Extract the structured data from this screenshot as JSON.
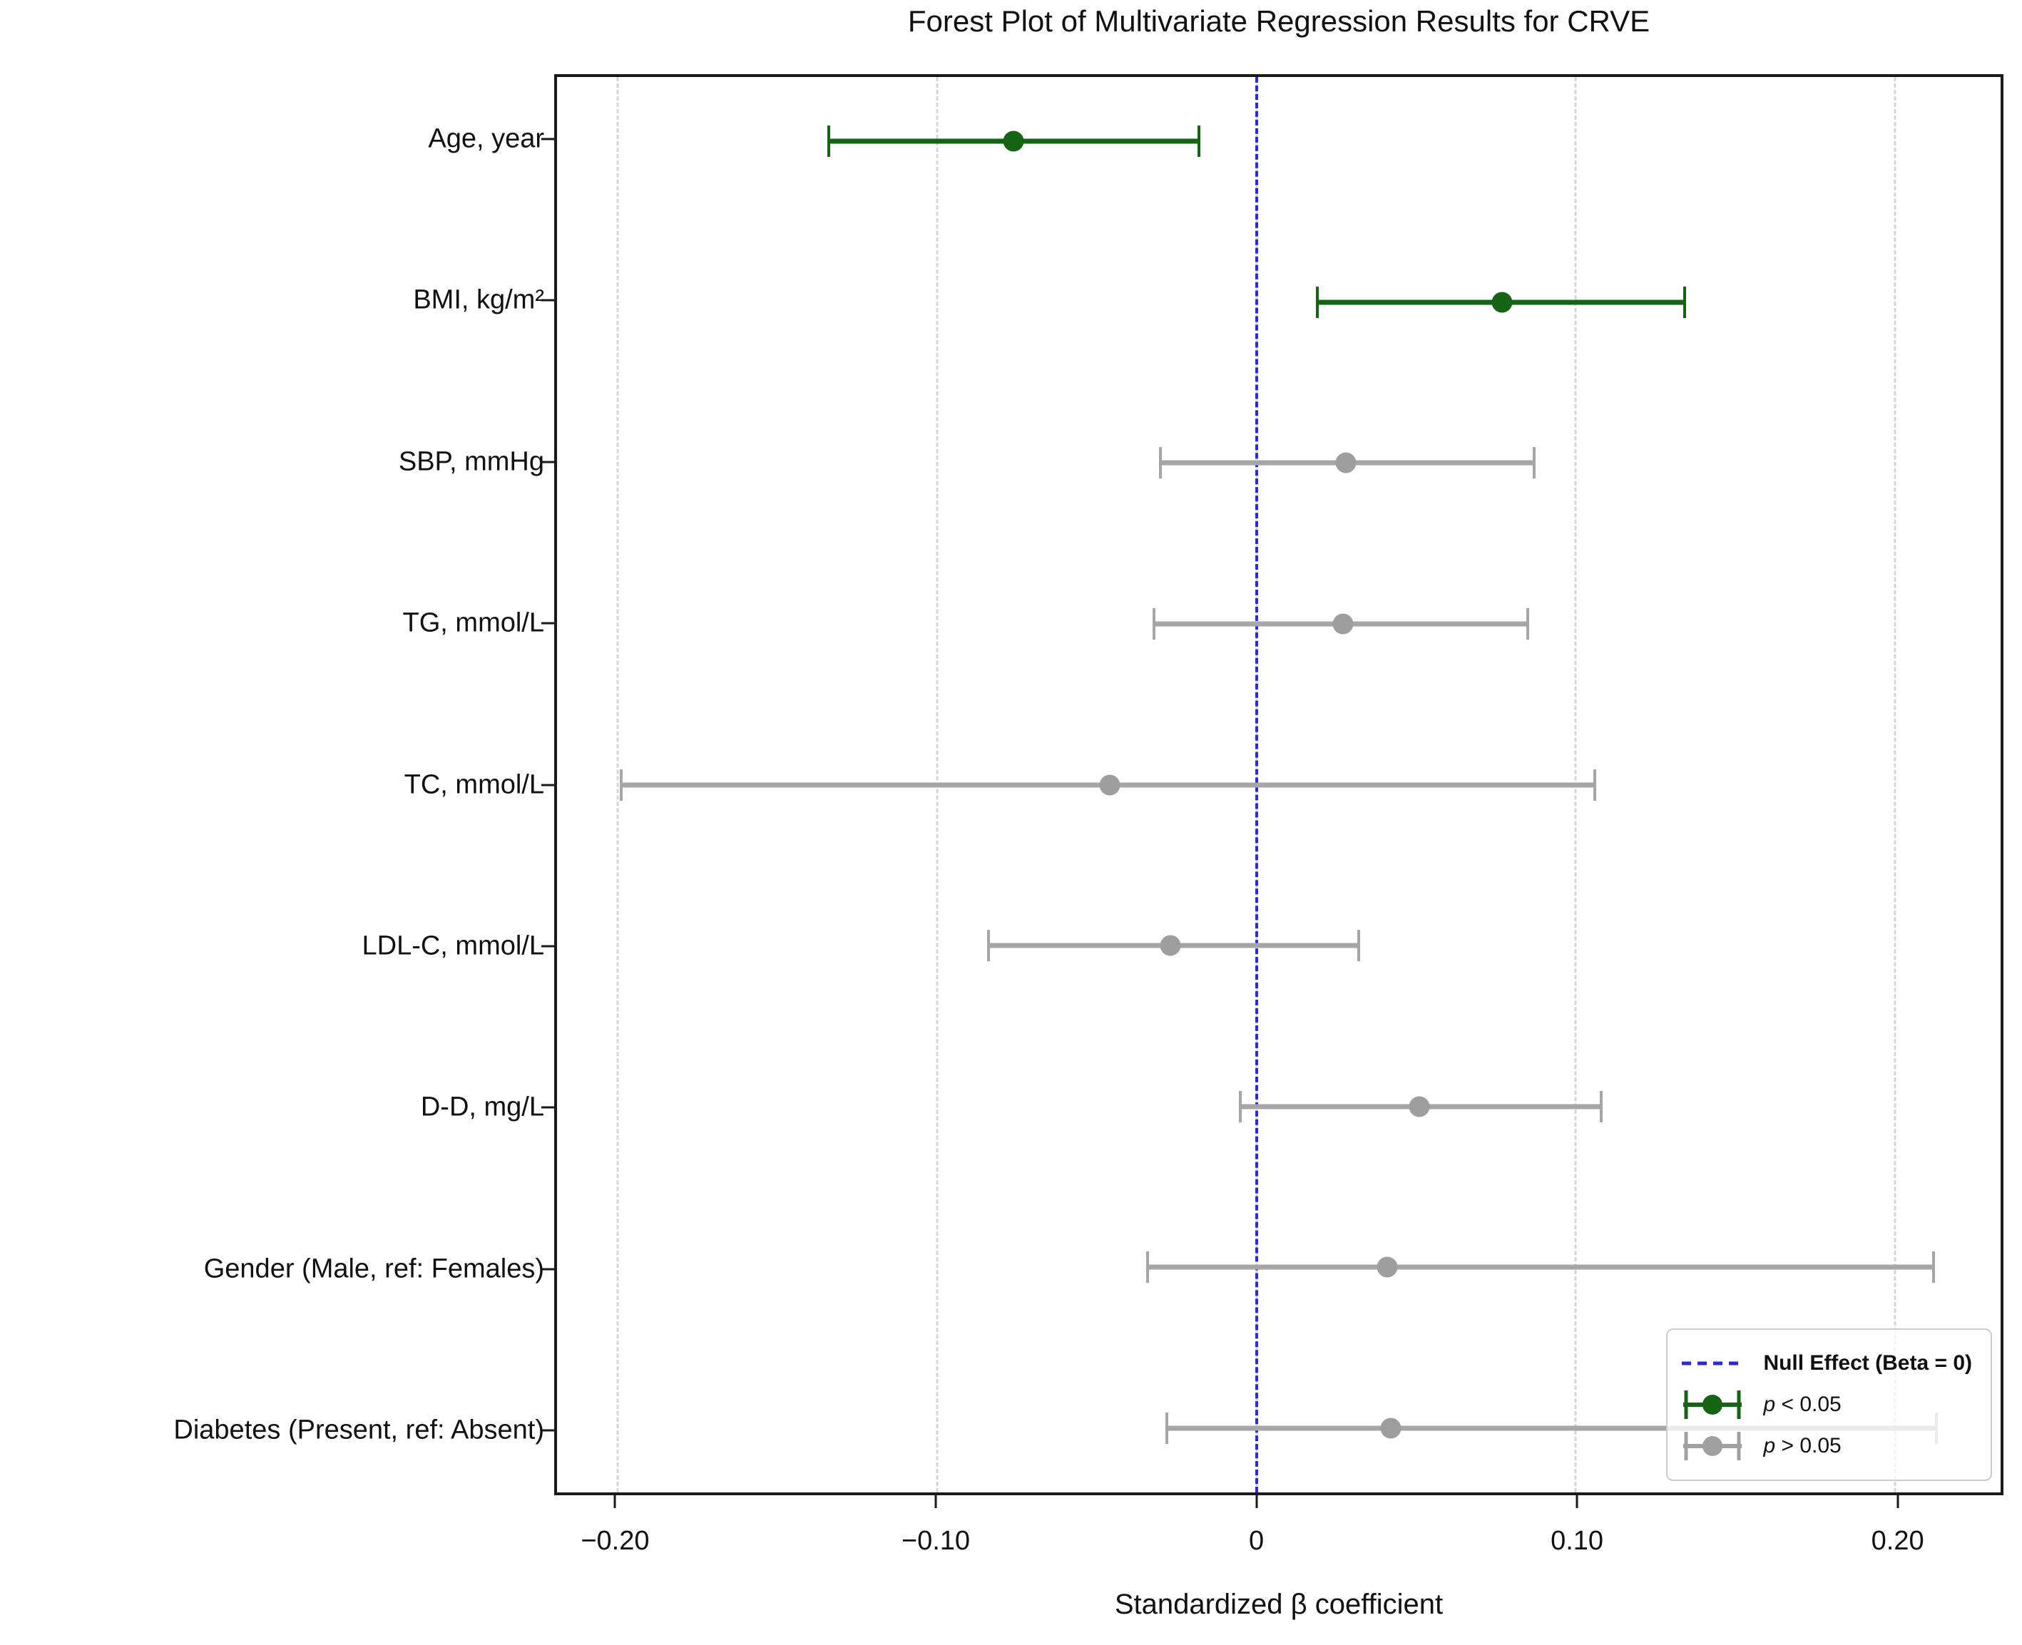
{
  "chart_data": {
    "type": "scatter",
    "variant": "forest-plot-horizontal-error-bars",
    "title": "Forest Plot of Multivariate Regression Results for CRVE",
    "xlabel": "Standardized β coefficient",
    "categories": [
      "Age, year",
      "BMI, kg/m²",
      "SBP, mmHg",
      "TG, mmol/L",
      "TC, mmol/L",
      "LDL-C, mmol/L",
      "D-D, mg/L",
      "Gender (Male, ref: Females)",
      "Diabetes (Present, ref: Absent)"
    ],
    "points": [
      {
        "category": "Age, year",
        "beta": -0.076,
        "ci_low": -0.134,
        "ci_high": -0.018,
        "significant": true
      },
      {
        "category": "BMI, kg/m²",
        "beta": 0.077,
        "ci_low": 0.019,
        "ci_high": 0.134,
        "significant": true
      },
      {
        "category": "SBP, mmHg",
        "beta": 0.028,
        "ci_low": -0.03,
        "ci_high": 0.087,
        "significant": false
      },
      {
        "category": "TG, mmol/L",
        "beta": 0.027,
        "ci_low": -0.032,
        "ci_high": 0.085,
        "significant": false
      },
      {
        "category": "TC, mmol/L",
        "beta": -0.046,
        "ci_low": -0.199,
        "ci_high": 0.106,
        "significant": false
      },
      {
        "category": "LDL-C, mmol/L",
        "beta": -0.027,
        "ci_low": -0.084,
        "ci_high": 0.032,
        "significant": false
      },
      {
        "category": "D-D, mg/L",
        "beta": 0.051,
        "ci_low": -0.005,
        "ci_high": 0.108,
        "significant": false
      },
      {
        "category": "Gender (Male, ref: Females)",
        "beta": 0.041,
        "ci_low": -0.034,
        "ci_high": 0.212,
        "significant": false
      },
      {
        "category": "Diabetes (Present, ref: Absent)",
        "beta": 0.042,
        "ci_low": -0.028,
        "ci_high": 0.213,
        "significant": false
      }
    ],
    "x_ticks": {
      "values": [
        -0.2,
        -0.1,
        0,
        0.1,
        0.2
      ],
      "labels": [
        "−0.20",
        "−0.10",
        "0",
        "0.10",
        "0.20"
      ]
    },
    "xlim": [
      -0.219,
      0.233
    ],
    "grid": "vertical dashed gridlines at x ticks",
    "null_line": {
      "x": 0
    },
    "legend": {
      "position": "lower right",
      "items": [
        {
          "marker": "dashed-line",
          "color": "#2a2ad8",
          "italic_prefix": "",
          "label": "Null Effect (Beta = 0)",
          "bold": true
        },
        {
          "marker": "errorbar",
          "color": "#146414",
          "italic_prefix": "p",
          "label": " < 0.05",
          "bold": false
        },
        {
          "marker": "errorbar",
          "color": "#a0a0a0",
          "italic_prefix": "p",
          "label": " > 0.05",
          "bold": false
        }
      ]
    },
    "colors": {
      "significant": "#146414",
      "nonsignificant_marker": "#9e9e9e",
      "nonsignificant_line": "#a6a6a6",
      "null_line": "#2a2ad8",
      "gridline": "#d6d6d6",
      "spine": "#1a1a1a",
      "text": "#111111",
      "background": "#ffffff"
    }
  }
}
